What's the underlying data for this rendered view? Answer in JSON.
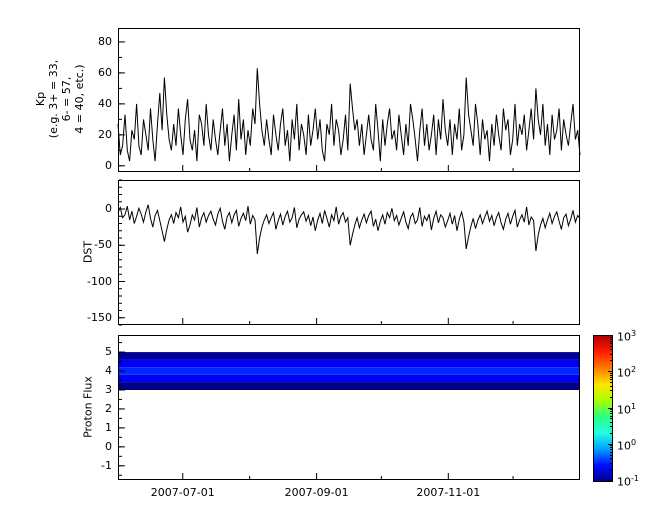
{
  "style": {
    "background": "#ffffff",
    "line_color": "#000000",
    "axis_color": "#000000"
  },
  "chart_data": [
    {
      "type": "line",
      "name": "kp",
      "ylabel_lines": [
        "Kp",
        "(e.g. 3+ = 33,",
        "6- = 57,",
        "4 = 40, etc.)"
      ],
      "ylim": [
        -4,
        89
      ],
      "yticks": [
        0,
        20,
        40,
        60,
        80
      ],
      "yminor": 10,
      "x_domain_days": [
        0,
        214
      ],
      "x_tick_days": [
        30,
        92,
        153
      ],
      "x_minor_days": [
        61,
        122,
        183
      ],
      "values": [
        27,
        7,
        13,
        33,
        10,
        3,
        23,
        17,
        40,
        13,
        7,
        30,
        20,
        10,
        37,
        17,
        3,
        27,
        47,
        23,
        57,
        33,
        17,
        10,
        27,
        13,
        37,
        20,
        7,
        30,
        43,
        17,
        10,
        23,
        3,
        33,
        27,
        13,
        40,
        20,
        10,
        30,
        17,
        7,
        23,
        37,
        13,
        27,
        3,
        20,
        33,
        10,
        43,
        17,
        30,
        7,
        23,
        13,
        37,
        27,
        63,
        40,
        23,
        13,
        30,
        17,
        7,
        33,
        20,
        10,
        27,
        37,
        13,
        23,
        3,
        30,
        17,
        40,
        10,
        27,
        20,
        7,
        33,
        13,
        23,
        37,
        17,
        30,
        10,
        3,
        27,
        20,
        40,
        13,
        30,
        23,
        7,
        17,
        33,
        10,
        53,
        37,
        23,
        30,
        13,
        27,
        7,
        20,
        33,
        17,
        10,
        40,
        23,
        3,
        30,
        13,
        27,
        37,
        17,
        23,
        10,
        33,
        20,
        7,
        27,
        13,
        40,
        30,
        17,
        3,
        23,
        37,
        13,
        27,
        10,
        20,
        33,
        7,
        30,
        17,
        43,
        23,
        13,
        30,
        7,
        27,
        17,
        37,
        10,
        20,
        57,
        33,
        23,
        13,
        40,
        27,
        7,
        30,
        17,
        23,
        3,
        27,
        13,
        33,
        20,
        10,
        37,
        23,
        30,
        7,
        17,
        40,
        13,
        27,
        20,
        33,
        10,
        23,
        37,
        17,
        50,
        30,
        20,
        40,
        13,
        27,
        7,
        33,
        17,
        23,
        37,
        10,
        30,
        20,
        13,
        27,
        40,
        17,
        23,
        7
      ]
    },
    {
      "type": "line",
      "name": "dst",
      "ylabel": "DST",
      "ylim": [
        -160,
        40
      ],
      "yticks": [
        0,
        -50,
        -100,
        -150
      ],
      "yminor": 10,
      "values": [
        -5,
        2,
        -12,
        -8,
        4,
        -15,
        -3,
        -20,
        -10,
        1,
        -7,
        -18,
        -4,
        6,
        -13,
        -25,
        -9,
        -2,
        -16,
        -30,
        -45,
        -28,
        -15,
        -8,
        -20,
        -5,
        -12,
        3,
        -18,
        -10,
        -32,
        -22,
        -8,
        -15,
        2,
        -25,
        -12,
        -5,
        -18,
        -9,
        -3,
        -14,
        -22,
        -7,
        1,
        -17,
        -28,
        -11,
        -5,
        -19,
        -8,
        -2,
        -24,
        -13,
        -6,
        -16,
        4,
        -21,
        -9,
        -15,
        -62,
        -40,
        -25,
        -15,
        -8,
        -20,
        -12,
        -5,
        -28,
        -16,
        -7,
        -22,
        -10,
        -3,
        -18,
        -12,
        2,
        -26,
        -14,
        -8,
        -4,
        -17,
        -9,
        -23,
        -11,
        -30,
        -15,
        -6,
        -20,
        -2,
        -13,
        -25,
        -8,
        -16,
        3,
        -21,
        -10,
        -5,
        -18,
        -12,
        -50,
        -35,
        -22,
        -12,
        -26,
        -15,
        -7,
        -19,
        -9,
        -3,
        -24,
        -14,
        -30,
        -17,
        -8,
        -21,
        -5,
        -12,
        1,
        -16,
        -9,
        -22,
        -13,
        -4,
        -18,
        -27,
        -11,
        -6,
        -20,
        -15,
        2,
        -24,
        -10,
        -16,
        -7,
        -29,
        -13,
        -3,
        -19,
        -8,
        -12,
        -25,
        -16,
        -6,
        -21,
        -9,
        -30,
        -14,
        -4,
        -18,
        -55,
        -38,
        -24,
        -13,
        -27,
        -16,
        -8,
        -20,
        -11,
        -3,
        -17,
        -9,
        -23,
        -12,
        -5,
        -19,
        -28,
        -14,
        -6,
        -21,
        -10,
        -2,
        -25,
        -15,
        -8,
        -18,
        3,
        -22,
        -11,
        -16,
        -58,
        -36,
        -22,
        -13,
        -26,
        -15,
        -6,
        -20,
        -10,
        -4,
        -17,
        -28,
        -12,
        -7,
        -23,
        -14,
        -2,
        -18,
        -9,
        -13
      ]
    },
    {
      "type": "heatmap",
      "name": "proton_flux",
      "ylabel": "Proton Flux",
      "ylim": [
        -1.75,
        5.9
      ],
      "yticks": [
        -1,
        0,
        1,
        2,
        3,
        4,
        5
      ],
      "yminor": 0.5,
      "x_tick_labels": [
        "2007-07-01",
        "2007-09-01",
        "2007-11-01"
      ],
      "band": {
        "y_bottom": 3,
        "y_top": 5,
        "rows": [
          {
            "y0": 4.6,
            "y1": 5.0,
            "flux": 0.12
          },
          {
            "y0": 4.2,
            "y1": 4.6,
            "flux": 0.3
          },
          {
            "y0": 3.8,
            "y1": 4.2,
            "flux": 0.45
          },
          {
            "y0": 3.4,
            "y1": 3.8,
            "flux": 0.3
          },
          {
            "y0": 3.0,
            "y1": 3.4,
            "flux": 0.1
          }
        ]
      },
      "colorbar": {
        "scale": "log",
        "min": 0.1,
        "max": 1000,
        "tick_exponents": [
          3,
          2,
          1,
          0,
          -1
        ],
        "gradient": [
          "#00008f",
          "#0010ff",
          "#00a4ff",
          "#22ffdd",
          "#2cff80",
          "#aaff00",
          "#ffe600",
          "#ff7b00",
          "#ff1e00",
          "#b30000"
        ]
      }
    }
  ]
}
